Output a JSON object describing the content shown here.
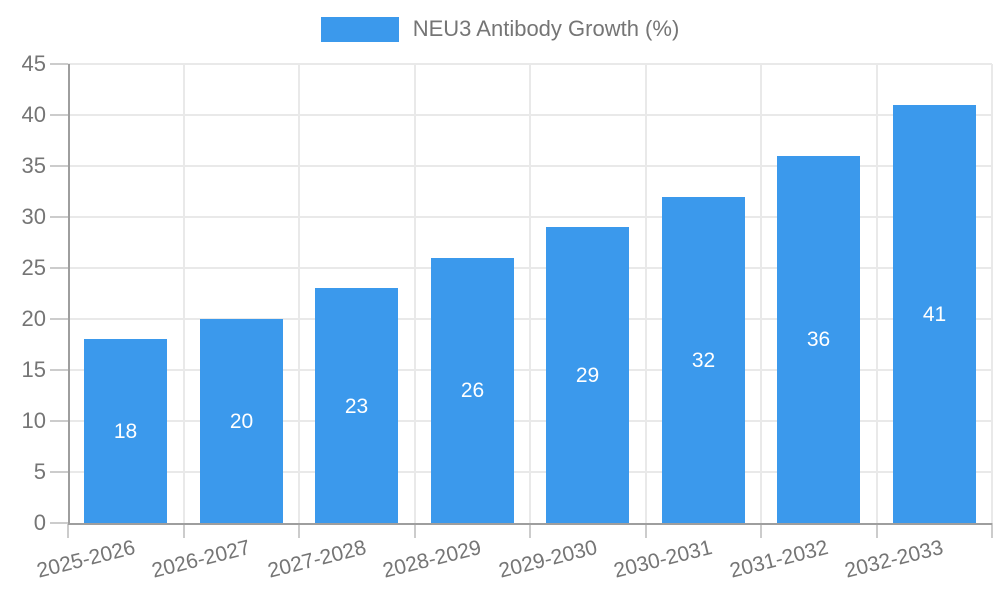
{
  "legend": {
    "label": "NEU3 Antibody Growth (%)"
  },
  "colors": {
    "bar": "#3b99ec",
    "bar_label": "#ffffff",
    "axis": "#9e9e9e",
    "grid": "#e9e9e9",
    "tick": "#cccccc",
    "text": "#757575",
    "background": "#ffffff"
  },
  "chart_data": {
    "type": "bar",
    "title": "NEU3 Antibody Growth (%)",
    "categories": [
      "2025-2026",
      "2026-2027",
      "2027-2028",
      "2028-2029",
      "2029-2030",
      "2030-2031",
      "2031-2032",
      "2032-2033"
    ],
    "values": [
      18,
      20,
      23,
      26,
      29,
      32,
      36,
      41
    ],
    "series_name": "NEU3 Antibody Growth (%)",
    "xlabel": "",
    "ylabel": "",
    "ylim": [
      0,
      45
    ],
    "ytick_step": 5,
    "yticks": [
      0,
      5,
      10,
      15,
      20,
      25,
      30,
      35,
      40,
      45
    ],
    "grid": true,
    "legend_position": "top",
    "bar_labels_shown": true,
    "bar_label_position": "center",
    "x_label_rotation_deg": -14
  }
}
